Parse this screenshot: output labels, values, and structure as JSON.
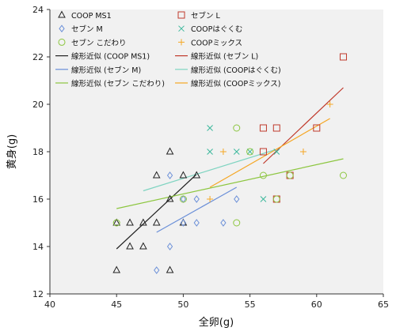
{
  "chart_data": {
    "type": "scatter",
    "xlabel": "全卵(g)",
    "ylabel": "黄身(g)",
    "xlim": [
      40,
      65
    ],
    "ylim": [
      12,
      24
    ],
    "xticks": [
      40,
      45,
      50,
      55,
      60,
      65
    ],
    "yticks": [
      12,
      14,
      16,
      18,
      20,
      22,
      24
    ],
    "grid": false,
    "legend_position": "top",
    "series": [
      {
        "name": "COOP MS1",
        "marker": "triangle",
        "color": "#222222",
        "points": [
          [
            45,
            13
          ],
          [
            45,
            15
          ],
          [
            46,
            14
          ],
          [
            46,
            15
          ],
          [
            47,
            14
          ],
          [
            47,
            15
          ],
          [
            48,
            15
          ],
          [
            48,
            17
          ],
          [
            49,
            13
          ],
          [
            49,
            16
          ],
          [
            49,
            18
          ],
          [
            50,
            15
          ],
          [
            50,
            17
          ],
          [
            51,
            17
          ]
        ]
      },
      {
        "name": "セブン L",
        "marker": "square",
        "color": "#c0392b",
        "points": [
          [
            56,
            18
          ],
          [
            56,
            19
          ],
          [
            57,
            16
          ],
          [
            57,
            19
          ],
          [
            58,
            17
          ],
          [
            60,
            19
          ],
          [
            62,
            22
          ]
        ]
      },
      {
        "name": "セブン M",
        "marker": "diamond",
        "color": "#6a8fd8",
        "points": [
          [
            48,
            13
          ],
          [
            49,
            14
          ],
          [
            49,
            17
          ],
          [
            50,
            15
          ],
          [
            50,
            16
          ],
          [
            51,
            15
          ],
          [
            51,
            16
          ],
          [
            53,
            15
          ],
          [
            54,
            16
          ]
        ]
      },
      {
        "name": "COOPはぐくむ",
        "marker": "x",
        "color": "#3cb89c",
        "points": [
          [
            52,
            18
          ],
          [
            52,
            19
          ],
          [
            54,
            18
          ],
          [
            55,
            18
          ],
          [
            56,
            16
          ],
          [
            57,
            18
          ]
        ]
      },
      {
        "name": "セブン こだわり",
        "marker": "circle",
        "color": "#8cc63f",
        "points": [
          [
            45,
            15
          ],
          [
            50,
            16
          ],
          [
            54,
            15
          ],
          [
            54,
            19
          ],
          [
            55,
            18
          ],
          [
            56,
            17
          ],
          [
            57,
            16
          ],
          [
            58,
            17
          ],
          [
            62,
            17
          ]
        ]
      },
      {
        "name": "COOPミックス",
        "marker": "plus",
        "color": "#f5a623",
        "points": [
          [
            52,
            16
          ],
          [
            53,
            18
          ],
          [
            59,
            18
          ],
          [
            61,
            20
          ]
        ]
      }
    ],
    "trendlines": [
      {
        "name": "線形近似 (COOP MS1)",
        "color": "#222222",
        "x": [
          45,
          51
        ],
        "y": [
          13.9,
          17.05
        ]
      },
      {
        "name": "線形近似 (セブン L)",
        "color": "#c0392b",
        "x": [
          56,
          62
        ],
        "y": [
          17.5,
          20.7
        ]
      },
      {
        "name": "線形近似 (セブン M)",
        "color": "#6a8fd8",
        "x": [
          48,
          54
        ],
        "y": [
          14.6,
          16.5
        ]
      },
      {
        "name": "線形近似 (COOPはぐくむ)",
        "color": "#7fd4c1",
        "x": [
          47,
          57
        ],
        "y": [
          16.35,
          18.1
        ]
      },
      {
        "name": "線形近似 (セブン こだわり)",
        "color": "#8cc63f",
        "x": [
          45,
          62
        ],
        "y": [
          15.6,
          17.7
        ]
      },
      {
        "name": "線形近似 (COOPミックス)",
        "color": "#f5a623",
        "x": [
          52,
          61
        ],
        "y": [
          16.5,
          19.4
        ]
      }
    ]
  }
}
